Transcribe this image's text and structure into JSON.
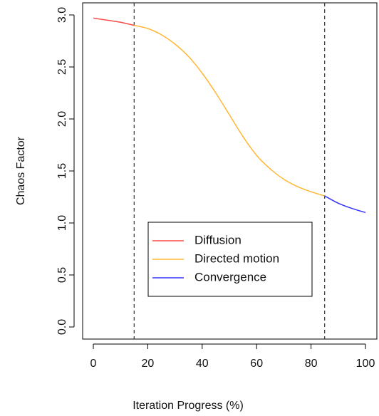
{
  "chart_data": {
    "type": "line",
    "xlabel": "Iteration Progress (%)",
    "ylabel": "Chaos Factor",
    "xlim": [
      0,
      100
    ],
    "ylim": [
      0,
      3
    ],
    "xticks": [
      0,
      20,
      40,
      60,
      80,
      100
    ],
    "xtick_labels": [
      "0",
      "20",
      "40",
      "60",
      "80",
      "100"
    ],
    "yticks": [
      0,
      0.5,
      1,
      1.5,
      2,
      2.5,
      3
    ],
    "ytick_labels": [
      "0.0",
      "0.5",
      "1.0",
      "1.5",
      "2.0",
      "2.5",
      "3.0"
    ],
    "grid": false,
    "legend_position": "bottom-center",
    "vlines": [
      15,
      85
    ],
    "series": [
      {
        "name": "Diffusion",
        "color": "#ff4d4d",
        "x": [
          0,
          5,
          10,
          15
        ],
        "y": [
          2.97,
          2.95,
          2.93,
          2.9
        ]
      },
      {
        "name": "Directed motion",
        "color": "#ffb733",
        "x": [
          15,
          20,
          25,
          30,
          35,
          40,
          45,
          50,
          55,
          60,
          65,
          70,
          75,
          80,
          85
        ],
        "y": [
          2.9,
          2.87,
          2.81,
          2.72,
          2.6,
          2.44,
          2.25,
          2.04,
          1.83,
          1.65,
          1.52,
          1.42,
          1.35,
          1.3,
          1.26
        ]
      },
      {
        "name": "Convergence",
        "color": "#3333ff",
        "x": [
          85,
          90,
          95,
          100
        ],
        "y": [
          1.26,
          1.19,
          1.14,
          1.1
        ]
      }
    ]
  }
}
